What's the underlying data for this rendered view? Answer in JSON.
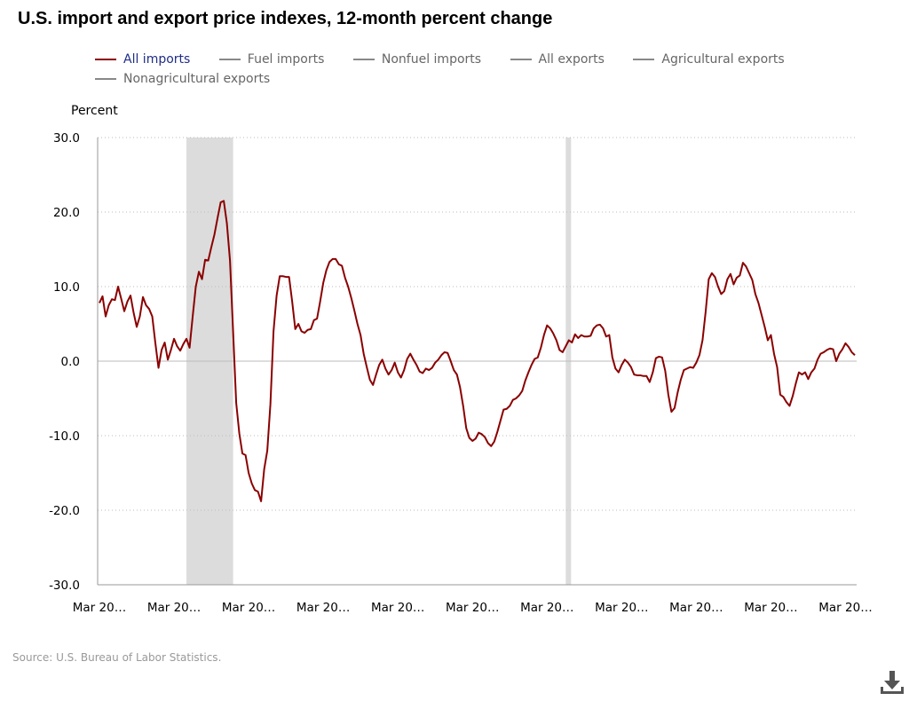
{
  "title": "U.S. import and export price indexes, 12-month percent change",
  "legend": [
    {
      "label": "All imports",
      "active": true
    },
    {
      "label": "Fuel imports",
      "active": false
    },
    {
      "label": "Nonfuel imports",
      "active": false
    },
    {
      "label": "All exports",
      "active": false
    },
    {
      "label": "Agricultural exports",
      "active": false
    },
    {
      "label": "Nonagricultural exports",
      "active": false
    }
  ],
  "source": "Source: U.S. Bureau of Labor Statistics.",
  "download_icon": "download-icon",
  "colors": {
    "series": "#8b0000",
    "recession_band": "#dcdcdc",
    "legend_active_text": "#1f2d86",
    "legend_inactive": "#888888"
  },
  "chart_data": {
    "type": "line",
    "ylabel": "Percent",
    "ylim": [
      -30,
      30
    ],
    "y_ticks": [
      "30.0",
      "20.0",
      "10.0",
      "0.0",
      "-10.0",
      "-20.0",
      "-30.0"
    ],
    "x_tick_labels": [
      "Mar 20…",
      "Mar 20…",
      "Mar 20…",
      "Mar 20…",
      "Mar 20…",
      "Mar 20…",
      "Mar 20…",
      "Mar 20…",
      "Mar 20…",
      "Mar 20…",
      "Mar 20…"
    ],
    "grid": "horizontal dotted",
    "legend_position": "top",
    "shaded_periods_month_index": [
      [
        28,
        43
      ],
      [
        150,
        151
      ]
    ],
    "series": [
      {
        "name": "All imports",
        "values": [
          7.8,
          8.7,
          6.0,
          7.5,
          8.3,
          8.2,
          10.0,
          8.4,
          6.7,
          8.0,
          8.8,
          6.5,
          4.6,
          6.0,
          8.6,
          7.5,
          7.0,
          6.0,
          2.4,
          -0.9,
          1.5,
          2.5,
          0.2,
          1.5,
          3.0,
          2.0,
          1.4,
          2.3,
          3.0,
          1.8,
          6.0,
          10.0,
          12.0,
          11.0,
          13.6,
          13.5,
          15.3,
          17.0,
          19.2,
          21.3,
          21.5,
          18.5,
          13.5,
          4.0,
          -5.6,
          -9.7,
          -12.4,
          -12.6,
          -15.0,
          -16.4,
          -17.3,
          -17.5,
          -18.8,
          -14.5,
          -12.0,
          -5.8,
          4.0,
          8.8,
          11.4,
          11.4,
          11.3,
          11.3,
          8.0,
          4.3,
          5.0,
          4.0,
          3.8,
          4.2,
          4.3,
          5.5,
          5.7,
          8.0,
          10.5,
          12.2,
          13.3,
          13.7,
          13.7,
          13.0,
          12.8,
          11.2,
          10.0,
          8.5,
          6.8,
          5.0,
          3.5,
          1.0,
          -0.8,
          -2.5,
          -3.2,
          -1.8,
          -0.5,
          0.2,
          -1.0,
          -1.8,
          -1.2,
          -0.2,
          -1.5,
          -2.2,
          -1.2,
          0.3,
          1.0,
          0.2,
          -0.5,
          -1.4,
          -1.6,
          -1.0,
          -1.2,
          -0.9,
          -0.2,
          0.2,
          0.8,
          1.2,
          1.1,
          0.0,
          -1.2,
          -1.8,
          -3.5,
          -6.0,
          -9.0,
          -10.3,
          -10.7,
          -10.4,
          -9.6,
          -9.8,
          -10.2,
          -11.0,
          -11.4,
          -10.8,
          -9.5,
          -8.0,
          -6.5,
          -6.4,
          -6.0,
          -5.2,
          -5.0,
          -4.6,
          -4.0,
          -2.6,
          -1.5,
          -0.5,
          0.3,
          0.5,
          1.8,
          3.5,
          4.8,
          4.4,
          3.7,
          2.8,
          1.5,
          1.2,
          2.0,
          2.8,
          2.5,
          3.6,
          3.1,
          3.5,
          3.3,
          3.3,
          3.4,
          4.4,
          4.8,
          4.9,
          4.4,
          3.3,
          3.5,
          0.5,
          -1.0,
          -1.5,
          -0.5,
          0.2,
          -0.2,
          -0.8,
          -1.8,
          -1.9,
          -1.9,
          -2.0,
          -2.0,
          -2.8,
          -1.5,
          0.4,
          0.6,
          0.5,
          -1.3,
          -4.5,
          -6.8,
          -6.3,
          -4.2,
          -2.5,
          -1.2,
          -1.0,
          -0.8,
          -0.9,
          -0.2,
          0.8,
          2.8,
          6.6,
          11.0,
          11.8,
          11.3,
          10.0,
          9.0,
          9.4,
          11.0,
          11.7,
          10.3,
          11.2,
          11.5,
          13.2,
          12.7,
          11.8,
          10.9,
          9.0,
          7.8,
          6.2,
          4.6,
          2.8,
          3.5,
          1.0,
          -0.8,
          -4.5,
          -4.8,
          -5.5,
          -6.0,
          -4.7,
          -3.0,
          -1.5,
          -1.8,
          -1.5,
          -2.4,
          -1.5,
          -1.0,
          0.2,
          1.0,
          1.2,
          1.5,
          1.7,
          1.6,
          0.0,
          1.0,
          1.6,
          2.4,
          1.9,
          1.2,
          0.8
        ]
      }
    ]
  }
}
